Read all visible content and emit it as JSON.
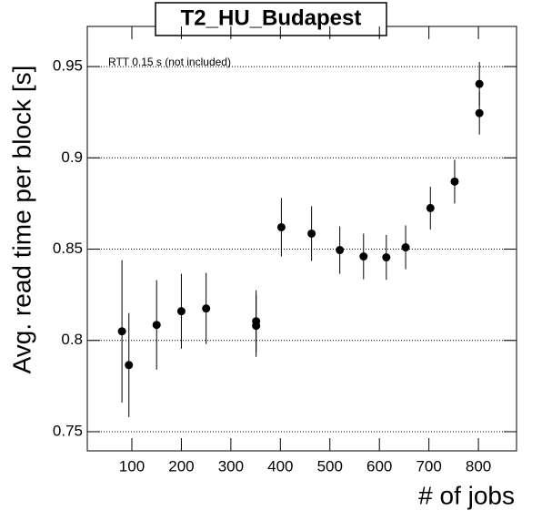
{
  "chart_data": {
    "type": "errorbar",
    "title": "T2_HU_Budapest",
    "x_label": "# of jobs",
    "y_label": "Avg. read time per block [s]",
    "annotation": "RTT 0.15 s (not included)",
    "xlim": [
      10,
      877
    ],
    "ylim": [
      0.7395,
      0.972
    ],
    "xticks": [
      100,
      200,
      300,
      400,
      500,
      600,
      700,
      800
    ],
    "yticks": [
      0.75,
      0.8,
      0.85,
      0.9,
      0.95
    ],
    "grid": "y",
    "series": [
      {
        "color": "#000000",
        "x": [
          80,
          94,
          150,
          200,
          250,
          351,
          351,
          402,
          463,
          520,
          568,
          614,
          653,
          703,
          752,
          802,
          802
        ],
        "values": [
          0.805,
          0.7865,
          0.8085,
          0.816,
          0.8175,
          0.8105,
          0.808,
          0.862,
          0.8585,
          0.8495,
          0.846,
          0.8455,
          0.851,
          0.8725,
          0.887,
          0.9245,
          0.9405
        ],
        "errors": [
          0.039,
          0.0285,
          0.0245,
          0.0205,
          0.0195,
          0.017,
          0.017,
          0.016,
          0.015,
          0.013,
          0.0125,
          0.0123,
          0.012,
          0.0117,
          0.012,
          0.0117,
          0.012
        ]
      }
    ]
  }
}
